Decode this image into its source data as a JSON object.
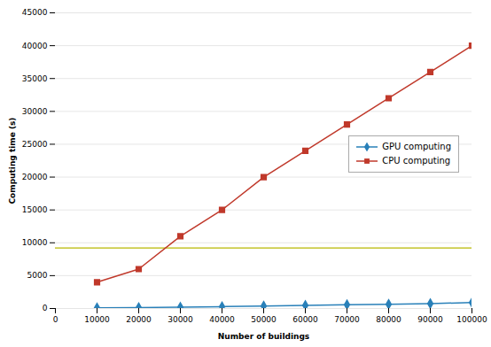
{
  "chart_data": {
    "type": "line",
    "xlabel": "Number of buildings",
    "ylabel": "Computing time (s)",
    "x": [
      10000,
      20000,
      30000,
      40000,
      50000,
      60000,
      70000,
      80000,
      90000,
      100000
    ],
    "series": [
      {
        "name": "GPU computing",
        "color": "#2980b9",
        "marker": "diamond",
        "line_style": "solid",
        "values": [
          100,
          150,
          200,
          280,
          380,
          480,
          580,
          650,
          750,
          900
        ]
      },
      {
        "name": "CPU computing",
        "color": "#c0392b",
        "marker": "square",
        "line_style": "solid",
        "values": [
          4000,
          6000,
          11000,
          15000,
          20000,
          24000,
          28000,
          32000,
          36000,
          40000
        ]
      }
    ],
    "hlines": [
      {
        "y": 9200,
        "color": "#b8b800"
      }
    ],
    "xlim": [
      0,
      100000
    ],
    "ylim": [
      0,
      45000
    ],
    "xticks": [
      0,
      10000,
      20000,
      30000,
      40000,
      50000,
      60000,
      70000,
      80000,
      90000,
      100000
    ],
    "yticks": [
      0,
      5000,
      10000,
      15000,
      20000,
      25000,
      30000,
      35000,
      40000,
      45000
    ],
    "grid": "y",
    "legend": "right"
  }
}
